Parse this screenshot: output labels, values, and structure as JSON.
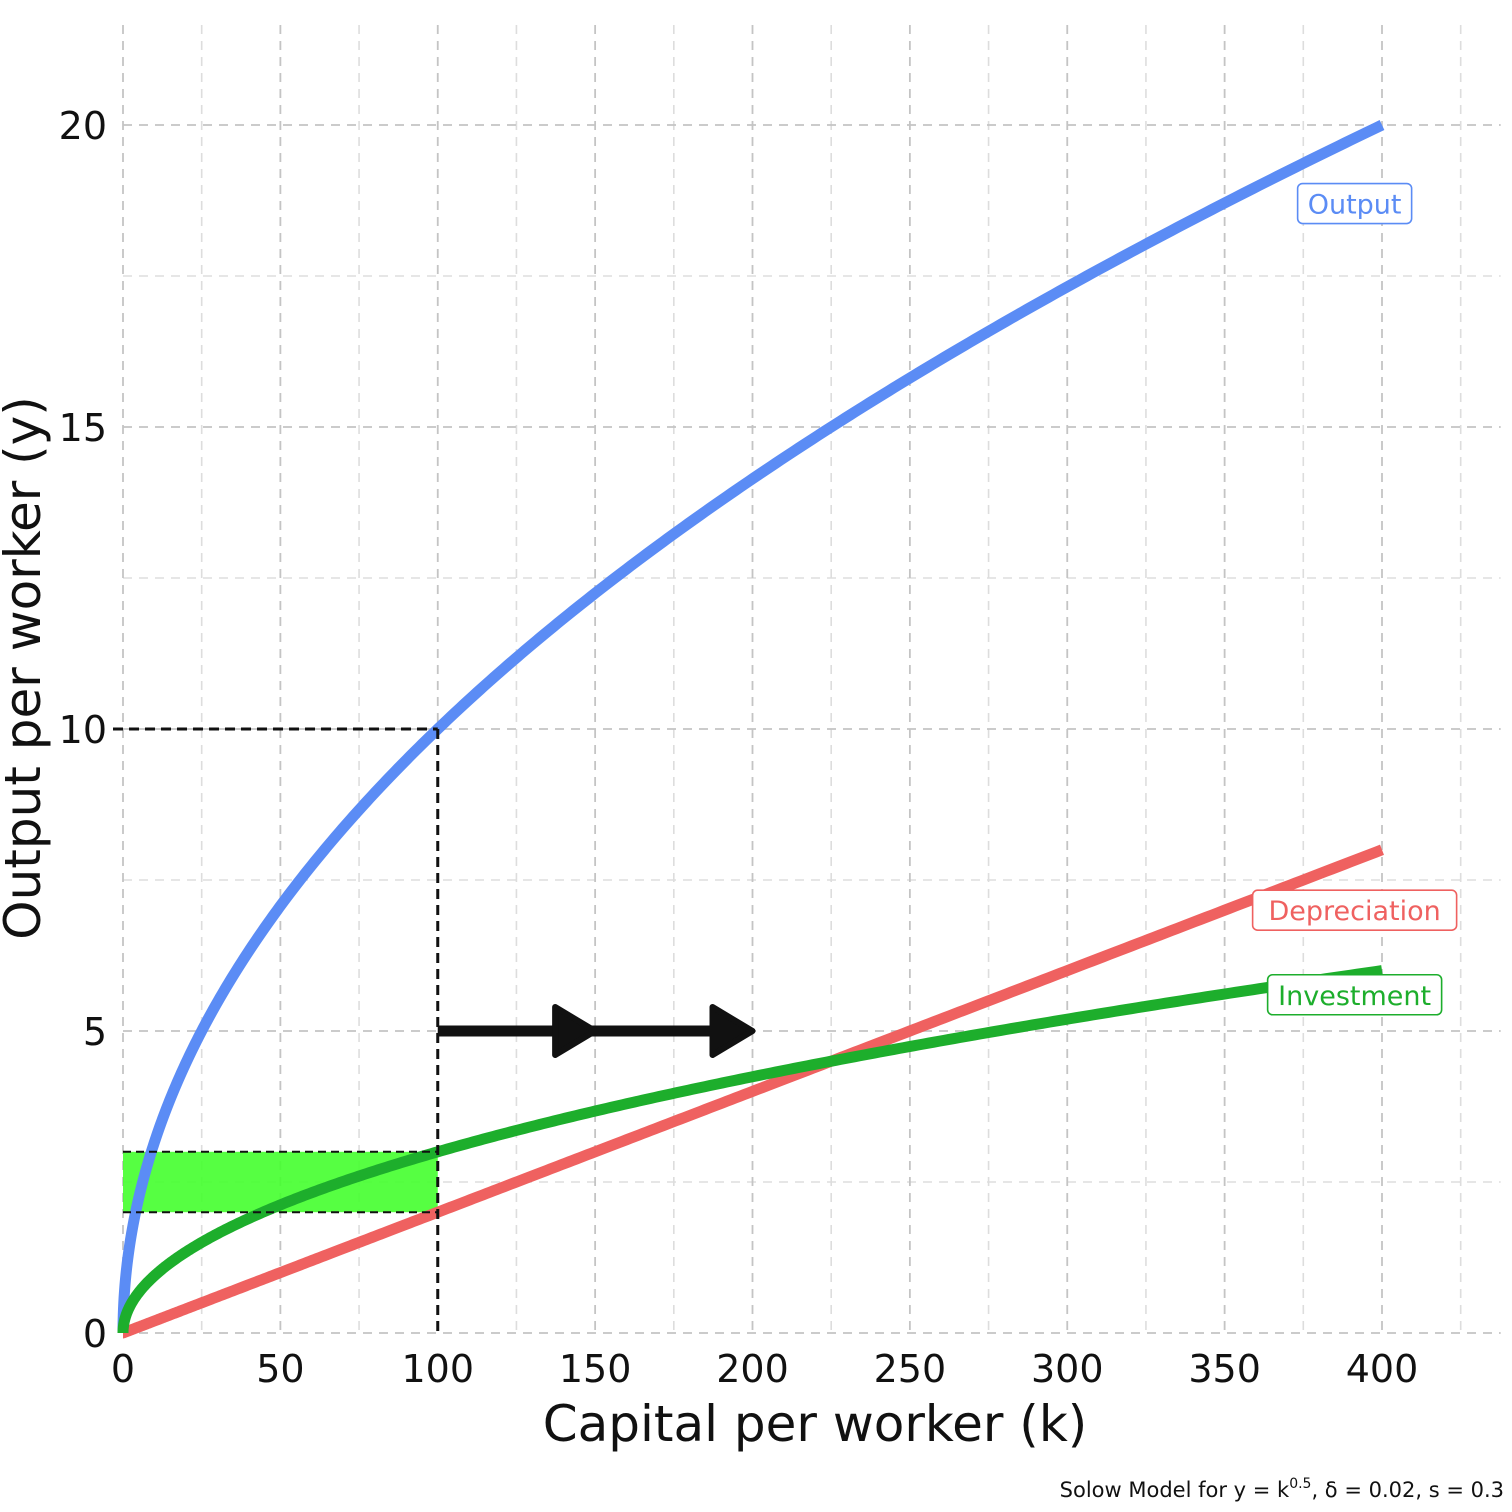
{
  "chart_data": {
    "type": "line",
    "title": "",
    "xlabel": "Capital per worker (k)",
    "ylabel": "Output per worker (y)",
    "caption": {
      "prefix": "Solow Model for y = k",
      "exponent": "0.5",
      "suffix": ", δ = 0.02, s = 0.3"
    },
    "xlim": [
      0,
      425
    ],
    "ylim": [
      0,
      20
    ],
    "x_ticks": [
      0,
      50,
      100,
      150,
      200,
      250,
      300,
      350,
      400
    ],
    "x_tick_labels": [
      "0",
      "50",
      "100",
      "150",
      "200",
      "250",
      "300",
      "350",
      "400"
    ],
    "y_ticks": [
      0,
      5,
      10,
      15,
      20
    ],
    "y_tick_labels": [
      "0",
      "5",
      "10",
      "15",
      "20"
    ],
    "grid": true,
    "parameters": {
      "alpha": 0.5,
      "delta": 0.02,
      "s": 0.3
    },
    "series": [
      {
        "name": "Output",
        "color": "#5B8CF5",
        "x": [
          0,
          1,
          5,
          10,
          25,
          50,
          75,
          100,
          150,
          200,
          250,
          300,
          350,
          400
        ],
        "y": [
          0,
          1,
          2.236,
          3.162,
          5,
          7.071,
          8.66,
          10,
          12.247,
          14.142,
          15.811,
          17.321,
          18.708,
          20
        ]
      },
      {
        "name": "Depreciation",
        "color": "#EF6160",
        "x": [
          0,
          100,
          200,
          300,
          400
        ],
        "y": [
          0,
          2,
          4,
          6,
          8
        ]
      },
      {
        "name": "Investment",
        "color": "#1DAE2C",
        "x": [
          0,
          1,
          5,
          10,
          25,
          50,
          75,
          100,
          150,
          200,
          225,
          250,
          300,
          350,
          400
        ],
        "y": [
          0,
          0.3,
          0.671,
          0.949,
          1.5,
          2.121,
          2.598,
          3,
          3.674,
          4.243,
          4.5,
          4.743,
          5.196,
          5.612,
          6
        ]
      }
    ],
    "series_labels": [
      {
        "text": "Output",
        "x": 350,
        "y": 18.7,
        "color": "#5B8CF5"
      },
      {
        "text": "Depreciation",
        "x": 350,
        "y": 7.0,
        "color": "#EF6160"
      },
      {
        "text": "Investment",
        "x": 350,
        "y": 5.6,
        "color": "#1DAE2C"
      }
    ],
    "annotations": {
      "reference_point": {
        "x": 100,
        "y": 10
      },
      "gap_band": {
        "x_from": 0,
        "x_to": 100,
        "y_from": 2,
        "y_to": 3,
        "color": "#44FF2E"
      },
      "arrow": {
        "x_from": 100,
        "x_to": 200,
        "y": 5,
        "heads_at_x": [
          150,
          200
        ],
        "color": "#111111"
      }
    }
  }
}
